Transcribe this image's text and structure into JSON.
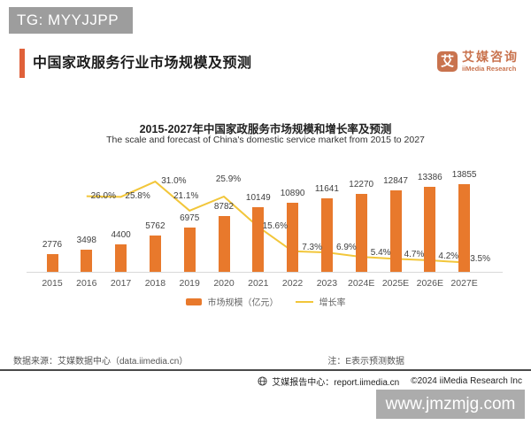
{
  "badge": "TG: MYYJJPP",
  "header": {
    "title": "中国家政服务行业市场规模及预测",
    "logo": {
      "icon": "艾",
      "name_cn": "艾媒咨询",
      "name_en": "iiMedia Research"
    }
  },
  "chart_data": {
    "type": "bar",
    "title": "2015-2027年中国家政服务市场规模和增长率及预测",
    "subtitle": "The scale and forecast of China's domestic service market from 2015 to 2027",
    "categories": [
      "2015",
      "2016",
      "2017",
      "2018",
      "2019",
      "2020",
      "2021",
      "2022",
      "2023",
      "2024E",
      "2025E",
      "2026E",
      "2027E"
    ],
    "series": [
      {
        "name": "市场规模（亿元）",
        "type": "bar",
        "color": "#E8792C",
        "values": [
          2776,
          3498,
          4400,
          5762,
          6975,
          8782,
          10149,
          10890,
          11641,
          12270,
          12847,
          13386,
          13855
        ]
      },
      {
        "name": "增长率",
        "type": "line",
        "color": "#F2C63A",
        "start_index": 1,
        "values": [
          26.0,
          25.8,
          31.0,
          21.1,
          25.9,
          15.6,
          7.3,
          6.9,
          5.4,
          4.7,
          4.2,
          3.5
        ],
        "labels": [
          "26.0%",
          "25.8%",
          "31.0%",
          "21.1%",
          "25.9%",
          "15.6%",
          "7.3%",
          "6.9%",
          "5.4%",
          "4.7%",
          "4.2%",
          "3.5%"
        ]
      }
    ],
    "legend": [
      "市场规模（亿元）",
      "增长率"
    ],
    "grid": "off",
    "legend_position": "bottom"
  },
  "footer": {
    "source": "数据来源：艾媒数据中心（data.iimedia.cn）",
    "note": "注：E表示预测数据",
    "report_center": "艾媒报告中心：report.iimedia.cn",
    "copyright": "©2024  iiMedia Research  Inc"
  },
  "site_watermark": "www.jmzmjg.com",
  "colors": {
    "bar": "#E8792C",
    "line": "#F2C63A",
    "accent": "#E0613A",
    "logo": "#C9734E",
    "badge_bg": "#9D9D9D",
    "watermark_bg": "#ACACAC",
    "divider": "#4A4A4A"
  }
}
